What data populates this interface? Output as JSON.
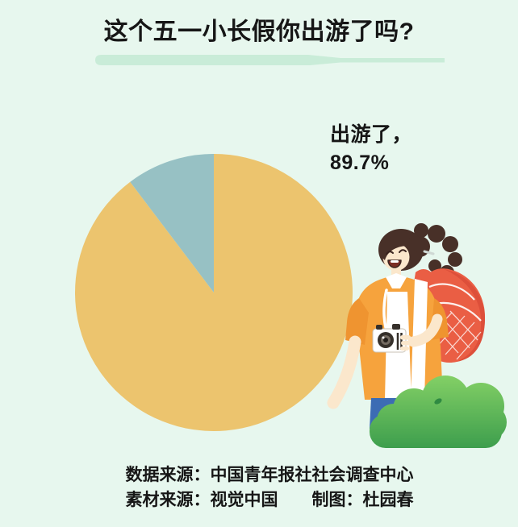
{
  "title": "这个五一小长假你出游了吗?",
  "chart_data": {
    "type": "pie",
    "title": "这个五一小长假你出游了吗?",
    "slices": [
      {
        "label": "出游了",
        "value": 89.7,
        "color": "#ecc46e"
      },
      {
        "label": "",
        "value": 10.3,
        "color": "#97c1c4"
      }
    ],
    "annotation": {
      "line1": "出游了，",
      "line2": "89.7%"
    },
    "legend": "none",
    "start_angle_deg": 0,
    "direction": "clockwise"
  },
  "footer": {
    "line1": "数据来源：中国青年报社社会调查中心",
    "line2": "素材来源：视觉中国　　制图：杜园春"
  },
  "illustration": "traveler-woman-with-backpack-camera-and-bush",
  "colors": {
    "background": "#e7f7ee",
    "underline_bar": "#c9ecd8",
    "title_text": "#161616",
    "slice_travel": "#ecc46e",
    "slice_other": "#97c1c4",
    "bush_light": "#85d166",
    "bush_dark": "#3a9c4c",
    "jacket_orange": "#f6a33d",
    "backpack_red": "#ea5e44",
    "jeans_blue": "#3c6cb4"
  }
}
